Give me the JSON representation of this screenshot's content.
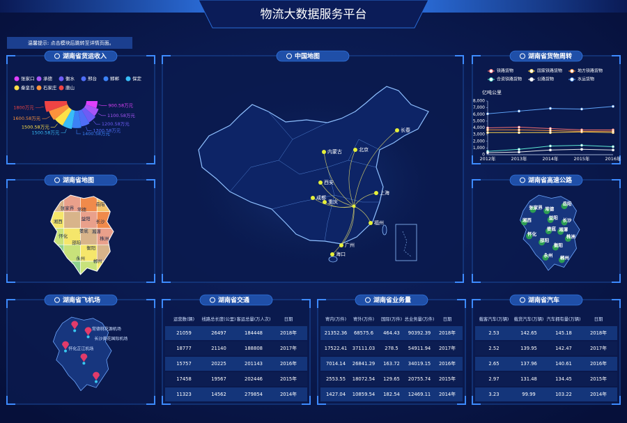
{
  "header": {
    "title": "物流大数据服务平台",
    "notice": "温馨提示: 点击模块后跳转至详情页面。"
  },
  "chart_data": [
    {
      "type": "pie",
      "rose": true,
      "title": "湖南省货运收入",
      "legend": "top",
      "categories": [
        "张家口",
        "承德",
        "衡水",
        "邢台",
        "邯郸",
        "保定",
        "秦皇岛",
        "石家庄",
        "唐山"
      ],
      "values": [
        900.58,
        1100.58,
        1200.58,
        1300.58,
        1400.58,
        1500.58,
        1500.58,
        1600.58,
        1800
      ],
      "value_labels": [
        "900.58万元",
        "1100.58万元",
        "1200.58万元",
        "1300.58万元",
        "1400.58万元",
        "1500.58万元",
        "1500.58万元",
        "1600.58万元",
        "1800万元"
      ],
      "colors": [
        "#e040fb",
        "#a855f7",
        "#6d5cf5",
        "#4f6ef7",
        "#3b82f6",
        "#38bdf8",
        "#fde047",
        "#fb923c",
        "#ef4444"
      ]
    },
    {
      "type": "line",
      "title": "湖南省货物周转",
      "y_label": "亿吨公里",
      "legend": "top",
      "categories": [
        "2012年",
        "2013年",
        "2014年",
        "2015年",
        "2016年"
      ],
      "series": [
        {
          "name": "铁路货物",
          "color": "#f87171",
          "values": [
            4000,
            4100,
            3900,
            3700,
            3700
          ]
        },
        {
          "name": "国家铁路货物",
          "color": "#fcd34d",
          "values": [
            3300,
            3300,
            3300,
            3400,
            3300
          ]
        },
        {
          "name": "地方铁路货物",
          "color": "#fb923c",
          "values": [
            3700,
            3700,
            3600,
            3500,
            3500
          ]
        },
        {
          "name": "合资铁路货物",
          "color": "#5eead4",
          "values": [
            500,
            800,
            1300,
            1400,
            1200
          ]
        },
        {
          "name": "公路货物",
          "color": "#e5e7eb",
          "values": [
            300,
            400,
            700,
            800,
            700
          ]
        },
        {
          "name": "水运货物",
          "color": "#60a5fa",
          "values": [
            6100,
            6500,
            6900,
            6800,
            7200
          ]
        }
      ],
      "ylim": [
        0,
        8000
      ],
      "yticks": [
        0,
        {
          "value": 1000,
          "label": "1,000"
        },
        {
          "value": 2000,
          "label": "2,000"
        },
        {
          "value": 3000,
          "label": "3,000"
        },
        {
          "value": 4000,
          "label": "4,000"
        },
        {
          "value": 5000,
          "label": "5,000"
        },
        {
          "value": 6000,
          "label": "6,000"
        },
        {
          "value": 7000,
          "label": "7,000"
        },
        {
          "value": 8000,
          "label": "8,000"
        }
      ]
    }
  ],
  "hunan_map": {
    "title": "湖南省地图",
    "labels": [
      "张家界",
      "常德",
      "岳阳",
      "湘西",
      "益阳",
      "长沙",
      "怀化",
      "娄底",
      "湘潭",
      "株洲",
      "邵阳",
      "衡阳",
      "永州",
      "郴州"
    ]
  },
  "china_map": {
    "title": "中国地图",
    "cities": [
      "长春",
      "内蒙古",
      "北京",
      "西安",
      "上海",
      "成都",
      "重庆",
      "福州",
      "广州",
      "海口"
    ]
  },
  "highway": {
    "title": "湖南省高速公路",
    "labels": [
      "张家界",
      "常德",
      "岳阳",
      "湘西",
      "益阳",
      "长沙",
      "怀化",
      "娄底",
      "湘潭",
      "株洲",
      "邵阳",
      "衡阳",
      "永州",
      "郴州"
    ]
  },
  "airport": {
    "title": "湖南省飞机场",
    "labels": [
      "常德桃花源机场",
      "长沙黄花国际机场",
      "怀化芷江机场"
    ]
  },
  "traffic": {
    "title": "湖南省交通",
    "columns": [
      "运营数(辆)",
      "线路总长度(公里)",
      "客运总量(万人次)",
      "日期"
    ],
    "rows": [
      [
        "21059",
        "26497",
        "184448",
        "2018年"
      ],
      [
        "18777",
        "21140",
        "188808",
        "2017年"
      ],
      [
        "15757",
        "20225",
        "201143",
        "2016年"
      ],
      [
        "17458",
        "19567",
        "202446",
        "2015年"
      ],
      [
        "11323",
        "14562",
        "279854",
        "2014年"
      ]
    ]
  },
  "business": {
    "title": "湖南省业务量",
    "columns": [
      "寄内(万件)",
      "寄外(万件)",
      "国际(万件)",
      "总业务量(万件)",
      "日期"
    ],
    "rows": [
      [
        "21352.36",
        "68575.6",
        "464.43",
        "90392.39",
        "2018年"
      ],
      [
        "17522.41",
        "37111.03",
        "278.5",
        "54911.94",
        "2017年"
      ],
      [
        "7014.14",
        "26841.29",
        "163.72",
        "34019.15",
        "2016年"
      ],
      [
        "2553.55",
        "18072.54",
        "129.65",
        "20755.74",
        "2015年"
      ],
      [
        "1427.04",
        "10859.54",
        "182.54",
        "12469.11",
        "2014年"
      ]
    ]
  },
  "cars": {
    "title": "湖南省汽车",
    "columns": [
      "载客汽车(万辆)",
      "载货汽车(万辆)",
      "汽车拥有量(万辆)",
      "日期"
    ],
    "rows": [
      [
        "2.53",
        "142.65",
        "145.18",
        "2018年"
      ],
      [
        "2.52",
        "139.95",
        "142.47",
        "2017年"
      ],
      [
        "2.65",
        "137.96",
        "140.61",
        "2016年"
      ],
      [
        "2.97",
        "131.48",
        "134.45",
        "2015年"
      ],
      [
        "3.23",
        "99.99",
        "103.22",
        "2014年"
      ]
    ]
  }
}
